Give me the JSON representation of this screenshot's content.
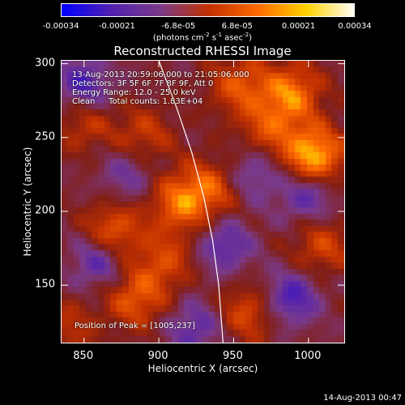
{
  "chart_data": {
    "type": "heatmap",
    "title": "Reconstructed RHESSI Image",
    "xlabel": "Heliocentric X (arcsec)",
    "ylabel": "Heliocentric Y (arcsec)",
    "xlim": [
      835,
      1025
    ],
    "ylim": [
      110,
      302
    ],
    "x_ticks": [
      850,
      900,
      950,
      1000
    ],
    "y_ticks": [
      150,
      200,
      250,
      300
    ],
    "colorbar": {
      "range": [
        -0.00034,
        0.00034
      ],
      "tick_values": [
        -0.00034,
        -0.00021,
        -6.8e-05,
        6.8e-05,
        0.00021,
        0.00034
      ],
      "tick_labels": [
        "-0.00034",
        "-0.00021",
        "-6.8e-05",
        "6.8e-05",
        "0.00021",
        "0.00034"
      ],
      "unit_base": "(photons cm",
      "unit_exp1": "-2",
      "unit_mid1": " s",
      "unit_exp2": "-1",
      "unit_mid2": " asec",
      "unit_exp3": "-2",
      "unit_end": ")",
      "colors": [
        "#0000ff",
        "#5020b0",
        "#7a3a8a",
        "#c03000",
        "#ff6a00",
        "#ffd200",
        "#ffffff"
      ]
    },
    "annotations": {
      "time_range": "13-Aug-2013 20:59:06.000 to 21:05:06.000",
      "detectors": "Detectors: 3F 5F 6F 7F 8F 9F, Att 0",
      "energy_range": "Energy Range: 12.0 - 25.0 keV",
      "method": "Clean",
      "total_counts": "Total counts: 1.83E+04",
      "peak": "Position of Peak = [1005,237]"
    },
    "limb_curve": [
      [
        900,
        302
      ],
      [
        912,
        270
      ],
      [
        922,
        240
      ],
      [
        930,
        210
      ],
      [
        936,
        180
      ],
      [
        940,
        150
      ],
      [
        943,
        110
      ]
    ],
    "hot_spots": [
      {
        "x": 1005,
        "y": 237,
        "w": 3.0
      },
      {
        "x": 990,
        "y": 280,
        "w": 2.2
      },
      {
        "x": 915,
        "y": 205,
        "w": 2.0
      },
      {
        "x": 935,
        "y": 215,
        "w": 1.6
      },
      {
        "x": 870,
        "y": 185,
        "w": 1.9
      },
      {
        "x": 885,
        "y": 140,
        "w": 1.8
      },
      {
        "x": 960,
        "y": 130,
        "w": 1.5
      },
      {
        "x": 955,
        "y": 285,
        "w": 1.7
      },
      {
        "x": 850,
        "y": 260,
        "w": 1.2
      },
      {
        "x": 1010,
        "y": 175,
        "w": 1.4
      },
      {
        "x": 890,
        "y": 250,
        "w": 1.3
      },
      {
        "x": 975,
        "y": 255,
        "w": 1.5
      },
      {
        "x": 905,
        "y": 165,
        "w": 1.4
      },
      {
        "x": 840,
        "y": 120,
        "w": 1.0
      }
    ],
    "cold_spots": [
      {
        "x": 850,
        "y": 285,
        "w": 1.8
      },
      {
        "x": 860,
        "y": 165,
        "w": 1.6
      },
      {
        "x": 990,
        "y": 140,
        "w": 1.8
      },
      {
        "x": 1000,
        "y": 210,
        "w": 1.5
      },
      {
        "x": 945,
        "y": 175,
        "w": 1.5
      },
      {
        "x": 925,
        "y": 120,
        "w": 1.4
      },
      {
        "x": 880,
        "y": 225,
        "w": 1.1
      },
      {
        "x": 965,
        "y": 225,
        "w": 1.2
      }
    ]
  },
  "timestamp": "14-Aug-2013 00:47"
}
